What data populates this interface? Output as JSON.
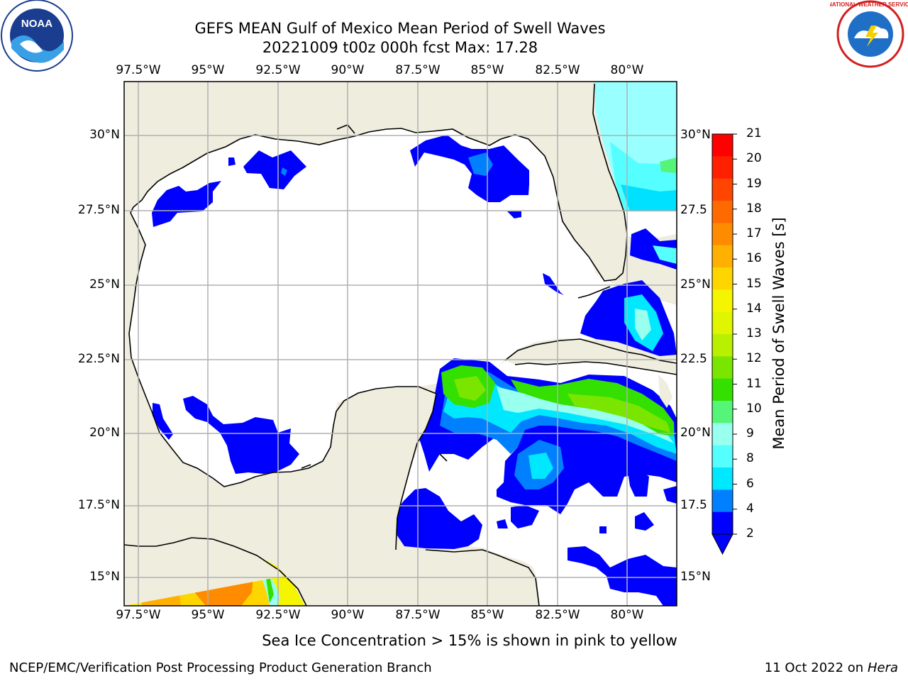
{
  "header": {
    "title_line1": "GEFS MEAN Gulf of Mexico Mean Period of Swell Waves",
    "title_line2": "20221009 t00z 000h fcst   Max: 17.28",
    "noaa_logo_text": "NOAA",
    "nws_logo_text": "NATIONAL WEATHER SERVICE"
  },
  "map": {
    "lon_labels": [
      "97.5°W",
      "95°W",
      "92.5°W",
      "90°W",
      "87.5°W",
      "85°W",
      "82.5°W",
      "80°W"
    ],
    "lat_labels_left": [
      "30°N",
      "27.5°N",
      "25°N",
      "22.5°N",
      "20°N",
      "17.5°N",
      "15°N"
    ],
    "lat_labels_right": [
      "30°N",
      "27.5",
      "25°N",
      "22.5",
      "20°N",
      "17.5",
      "15°N"
    ],
    "colors": {
      "land": "#efedde",
      "ocean_blank": "#ffffff",
      "grid": "#b0b0b0"
    }
  },
  "colorbar": {
    "label": "Mean Period of Swell Waves [s]",
    "ticks": [
      "21",
      "20",
      "19",
      "18",
      "17",
      "16",
      "15",
      "14",
      "13",
      "12",
      "11",
      "10",
      "9",
      "8",
      "6",
      "4",
      "2"
    ],
    "colors": [
      "#ff0000",
      "#ff2000",
      "#ff4500",
      "#ff6a00",
      "#ff8c00",
      "#ffb000",
      "#ffd500",
      "#f5f500",
      "#e0f500",
      "#b8f000",
      "#7ae600",
      "#33e000",
      "#55f57a",
      "#99ffee",
      "#55ffff",
      "#00e8ff",
      "#0080ff",
      "#0000ff"
    ]
  },
  "caption": "Sea Ice Concentration > 15% is shown in pink to yellow",
  "footer": {
    "left": "NCEP/EMC/Verification Post Processing Product Generation Branch",
    "right_date": "11 Oct 2022 on ",
    "right_host": "Hera"
  }
}
